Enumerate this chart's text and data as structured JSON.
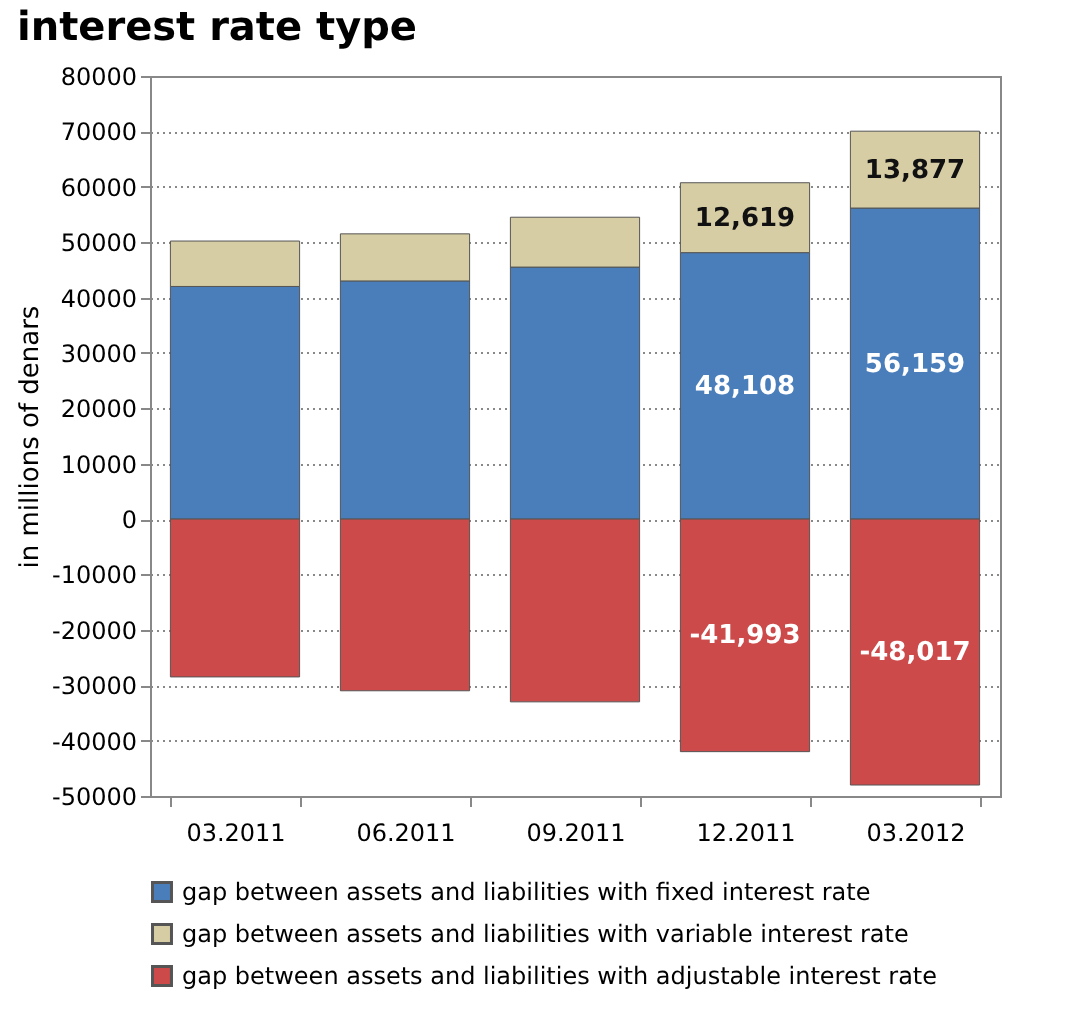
{
  "chart_data": {
    "type": "bar",
    "title": "interest rate type",
    "ylabel": "in millions of denars",
    "stacked": true,
    "categories": [
      "03.2011",
      "06.2011",
      "09.2011",
      "12.2011",
      "03.2012"
    ],
    "series": [
      {
        "name": "gap between assets and liabilities with fixed interest rate",
        "color": "#4a7ebb",
        "values": [
          42000,
          43000,
          45500,
          48108,
          56159
        ],
        "value_labels": [
          null,
          null,
          null,
          "48,108",
          "56,159"
        ]
      },
      {
        "name": "gap between assets and liabilities with variable interest rate",
        "color": "#d6cda4",
        "values": [
          8200,
          8500,
          9000,
          12619,
          13877
        ],
        "value_labels": [
          null,
          null,
          null,
          "12,619",
          "13,877"
        ]
      },
      {
        "name": "gap between assets and liabilities with adjustable interest rate",
        "color": "#cc4a4a",
        "values": [
          -28500,
          -31000,
          -33000,
          -41993,
          -48017
        ],
        "value_labels": [
          null,
          null,
          null,
          "-41,993",
          "-48,017"
        ]
      }
    ],
    "ylim": [
      -50000,
      80000
    ],
    "yticks": [
      -50000,
      -40000,
      -30000,
      -20000,
      -10000,
      0,
      10000,
      20000,
      30000,
      40000,
      50000,
      60000,
      70000,
      80000
    ],
    "grid": "y",
    "legend": "bottom"
  }
}
